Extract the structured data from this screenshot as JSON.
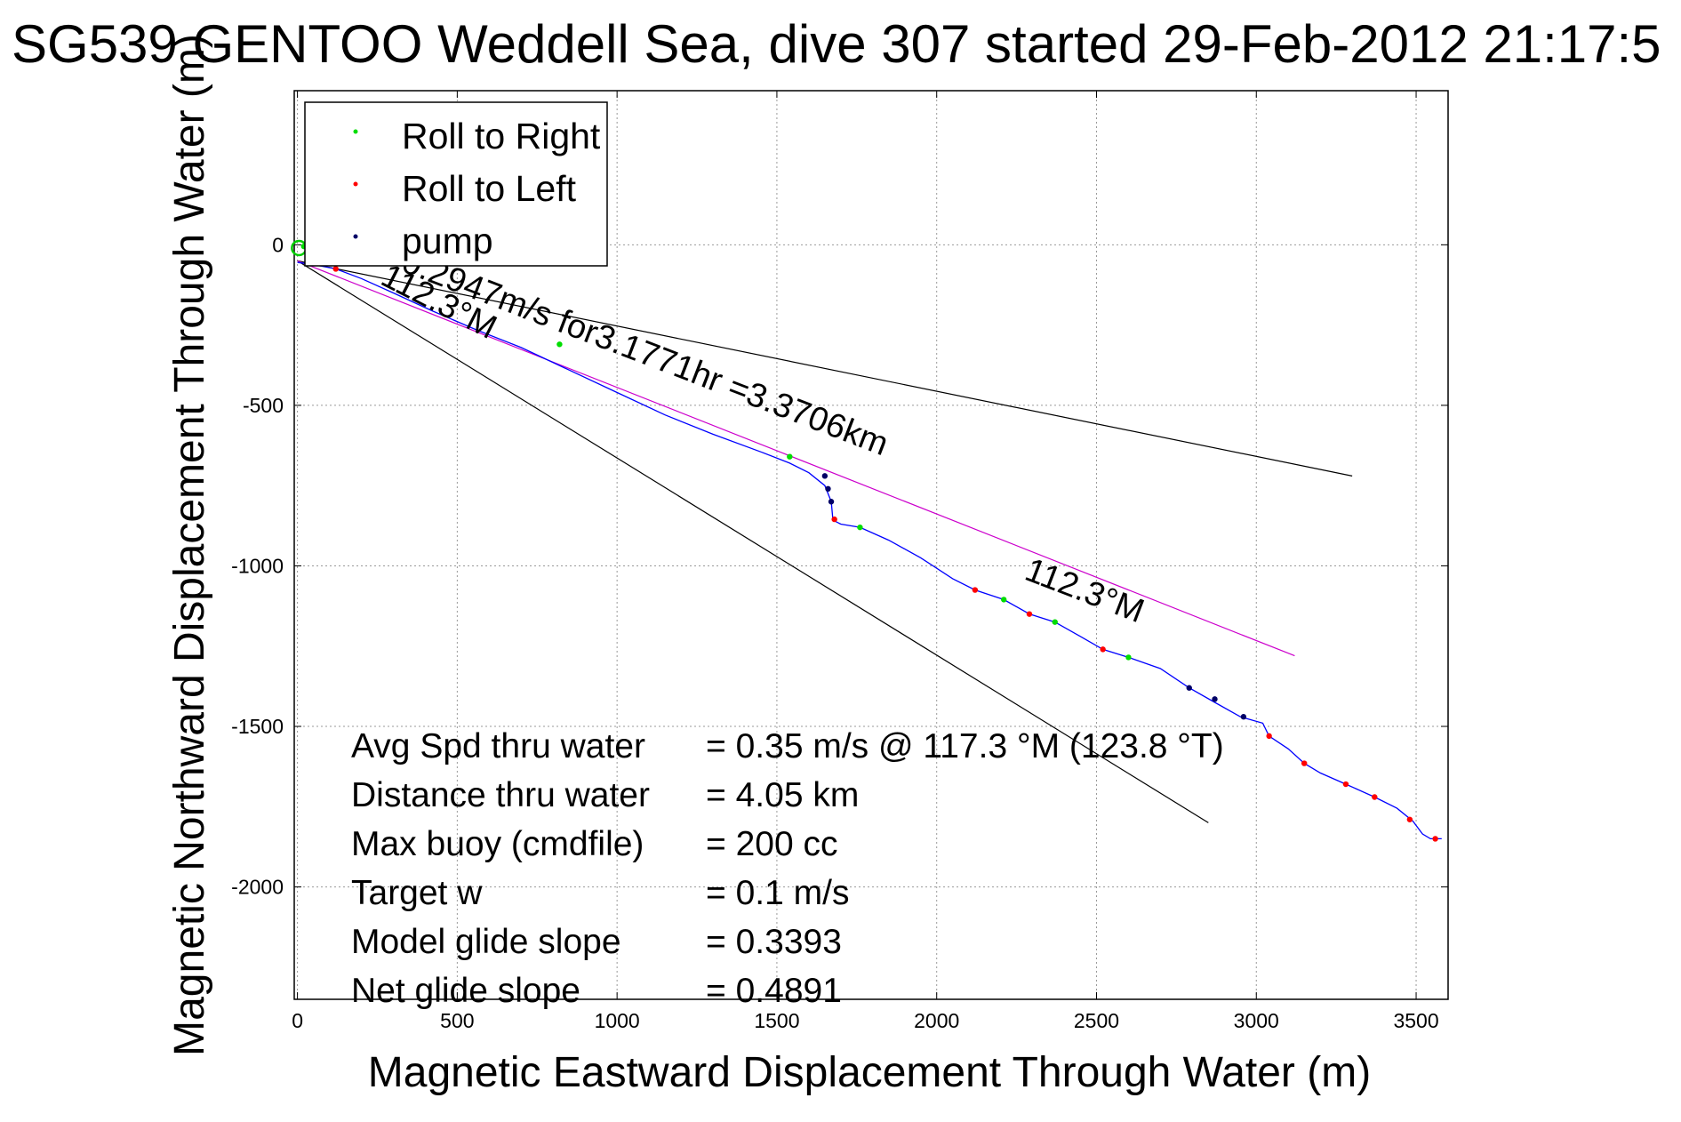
{
  "chart_data": {
    "type": "line",
    "title": "SG539 GENTOO Weddell Sea, dive 307 started 29-Feb-2012 21:17:5",
    "xlabel": "Magnetic Eastward Displacement Through Water (m)",
    "ylabel": "Magnetic Northward Displacement Through Water (m)",
    "xlim": [
      -10,
      3600
    ],
    "ylim": [
      -2350,
      480
    ],
    "xticks": [
      0,
      500,
      1000,
      1500,
      2000,
      2500,
      3000,
      3500
    ],
    "yticks": [
      0,
      -500,
      -1000,
      -1500,
      -2000
    ],
    "xtick_labels": [
      "0",
      "500",
      "1000",
      "1500",
      "2000",
      "2500",
      "3000",
      "3500"
    ],
    "ytick_labels": [
      "0",
      "-500",
      "-1000",
      "-1500",
      "-2000"
    ],
    "grid": true,
    "legend_position": "top-left",
    "legend": [
      {
        "label": "Roll to Right",
        "color": "#00dd00"
      },
      {
        "label": "Roll to Left",
        "color": "#ff0000"
      },
      {
        "label": "pump",
        "color": "#000066"
      }
    ],
    "track": {
      "name": "track",
      "color": "#0000ff",
      "x": [
        0,
        40,
        120,
        200,
        300,
        420,
        560,
        700,
        850,
        1000,
        1150,
        1300,
        1450,
        1540,
        1600,
        1650,
        1670,
        1675,
        1680,
        1700,
        1760,
        1850,
        1950,
        2050,
        2120,
        2210,
        2290,
        2370,
        2450,
        2520,
        2600,
        2700,
        2790,
        2870,
        2950,
        3020,
        3040,
        3100,
        3150,
        3200,
        3280,
        3370,
        3440,
        3490,
        3520,
        3545,
        3580
      ],
      "y": [
        -55,
        -60,
        -75,
        -105,
        -150,
        -205,
        -265,
        -320,
        -390,
        -460,
        -530,
        -590,
        -645,
        -680,
        -710,
        -750,
        -800,
        -855,
        -860,
        -870,
        -880,
        -920,
        -975,
        -1040,
        -1075,
        -1105,
        -1150,
        -1175,
        -1220,
        -1260,
        -1285,
        -1320,
        -1380,
        -1425,
        -1470,
        -1490,
        -1530,
        -1570,
        -1615,
        -1645,
        -1680,
        -1720,
        -1755,
        -1795,
        -1835,
        -1850,
        -1850
      ]
    },
    "roll_right_points": {
      "x": [
        20,
        820,
        1540,
        1760,
        2210,
        2370,
        2600
      ],
      "y": [
        -5,
        -310,
        -660,
        -880,
        -1105,
        -1175,
        -1285
      ]
    },
    "roll_left_points": {
      "x": [
        120,
        1680,
        2120,
        2290,
        2520,
        3040,
        3150,
        3280,
        3370,
        3480,
        3560
      ],
      "y": [
        -75,
        -855,
        -1075,
        -1150,
        -1260,
        -1530,
        -1615,
        -1680,
        -1720,
        -1790,
        -1850
      ]
    },
    "pump_points": {
      "x": [
        1650,
        1660,
        1670,
        2790,
        2870,
        2960
      ],
      "y": [
        -720,
        -760,
        -800,
        -1380,
        -1415,
        -1470
      ]
    },
    "lines": [
      {
        "name": "current-vector-line",
        "color": "#000000",
        "x": [
          0,
          3300
        ],
        "y": [
          -50,
          -720
        ]
      },
      {
        "name": "heading-line",
        "color": "#000000",
        "x": [
          0,
          2850
        ],
        "y": [
          -50,
          -1800
        ]
      },
      {
        "name": "average-course-line",
        "color": "#cc00cc",
        "x": [
          0,
          3120
        ],
        "y": [
          -50,
          -1280
        ]
      }
    ],
    "annotations": [
      {
        "text": "0.2947m/s for3.1771hr =3.3706km",
        "x": 320,
        "y": -80,
        "angle": 21
      },
      {
        "text": "112.3°M",
        "x": 255,
        "y": -120,
        "angle": 27
      },
      {
        "text": "112.3°M",
        "x": 2270,
        "y": -1040,
        "angle": 21
      }
    ],
    "stats": [
      {
        "label": "Avg Spd thru water",
        "value": "=  0.35 m/s @ 117.3 °M (123.8 °T)"
      },
      {
        "label": "Distance thru water",
        "value": "=  4.05 km"
      },
      {
        "label": "Max buoy (cmdfile)",
        "value": "= 200 cc"
      },
      {
        "label": "Target w",
        "value": "= 0.1 m/s"
      },
      {
        "label": "Model glide slope",
        "value": "= 0.3393"
      },
      {
        "label": "Net glide slope",
        "value": "= 0.4891"
      }
    ]
  }
}
